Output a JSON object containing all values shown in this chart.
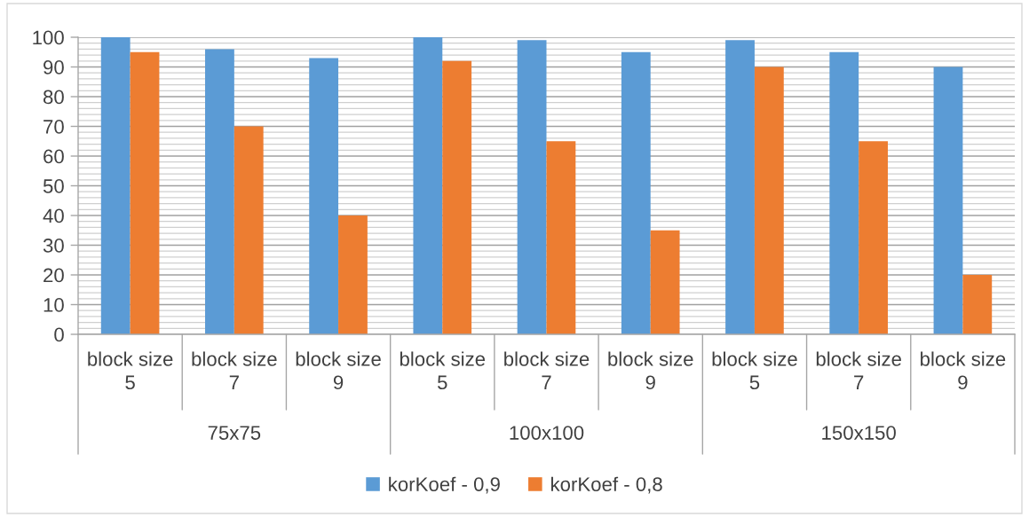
{
  "chart_data": {
    "type": "bar",
    "categories": [
      "block size 5",
      "block size 7",
      "block size 9",
      "block size 5",
      "block size 7",
      "block size 9",
      "block size 5",
      "block size 7",
      "block size 9"
    ],
    "series": [
      {
        "name": "korKoef - 0,9",
        "color": "#5b9bd5",
        "values": [
          100,
          96,
          93,
          100,
          99,
          95,
          99,
          95,
          90
        ]
      },
      {
        "name": "korKoef - 0,8",
        "color": "#ed7d31",
        "values": [
          95,
          70,
          40,
          92,
          65,
          35,
          90,
          65,
          20
        ]
      }
    ],
    "annotations": [
      "75x75",
      "100x100",
      "150x150"
    ],
    "ylim": [
      0,
      100
    ],
    "yticks": [
      0,
      {
        "value": 2,
        "label": null
      },
      {
        "value": 4,
        "label": null
      },
      {
        "value": 6,
        "label": null
      },
      {
        "value": 8,
        "label": null
      },
      10,
      {
        "value": 12,
        "label": null
      },
      {
        "value": 14,
        "label": null
      },
      {
        "value": 16,
        "label": null
      },
      {
        "value": 18,
        "label": null
      },
      20,
      {
        "value": 22,
        "label": null
      },
      {
        "value": 24,
        "label": null
      },
      {
        "value": 26,
        "label": null
      },
      {
        "value": 28,
        "label": null
      },
      30,
      {
        "value": 32,
        "label": null
      },
      {
        "value": 34,
        "label": null
      },
      {
        "value": 36,
        "label": null
      },
      {
        "value": 38,
        "label": null
      },
      40,
      {
        "value": 42,
        "label": null
      },
      {
        "value": 44,
        "label": null
      },
      {
        "value": 46,
        "label": null
      },
      {
        "value": 48,
        "label": null
      },
      50,
      {
        "value": 52,
        "label": null
      },
      {
        "value": 54,
        "label": null
      },
      {
        "value": 56,
        "label": null
      },
      {
        "value": 58,
        "label": null
      },
      60,
      {
        "value": 62,
        "label": null
      },
      {
        "value": 64,
        "label": null
      },
      {
        "value": 66,
        "label": null
      },
      {
        "value": 68,
        "label": null
      },
      70,
      {
        "value": 72,
        "label": null
      },
      {
        "value": 74,
        "label": null
      },
      {
        "value": 76,
        "label": null
      },
      {
        "value": 78,
        "label": null
      },
      80,
      {
        "value": 82,
        "label": null
      },
      {
        "value": 84,
        "label": null
      },
      {
        "value": 86,
        "label": null
      },
      {
        "value": 88,
        "label": null
      },
      90,
      {
        "value": 92,
        "label": null
      },
      {
        "value": 94,
        "label": null
      },
      {
        "value": 96,
        "label": null
      },
      {
        "value": 98,
        "label": null
      },
      100
    ],
    "grid": "y",
    "legend": "bottom"
  }
}
